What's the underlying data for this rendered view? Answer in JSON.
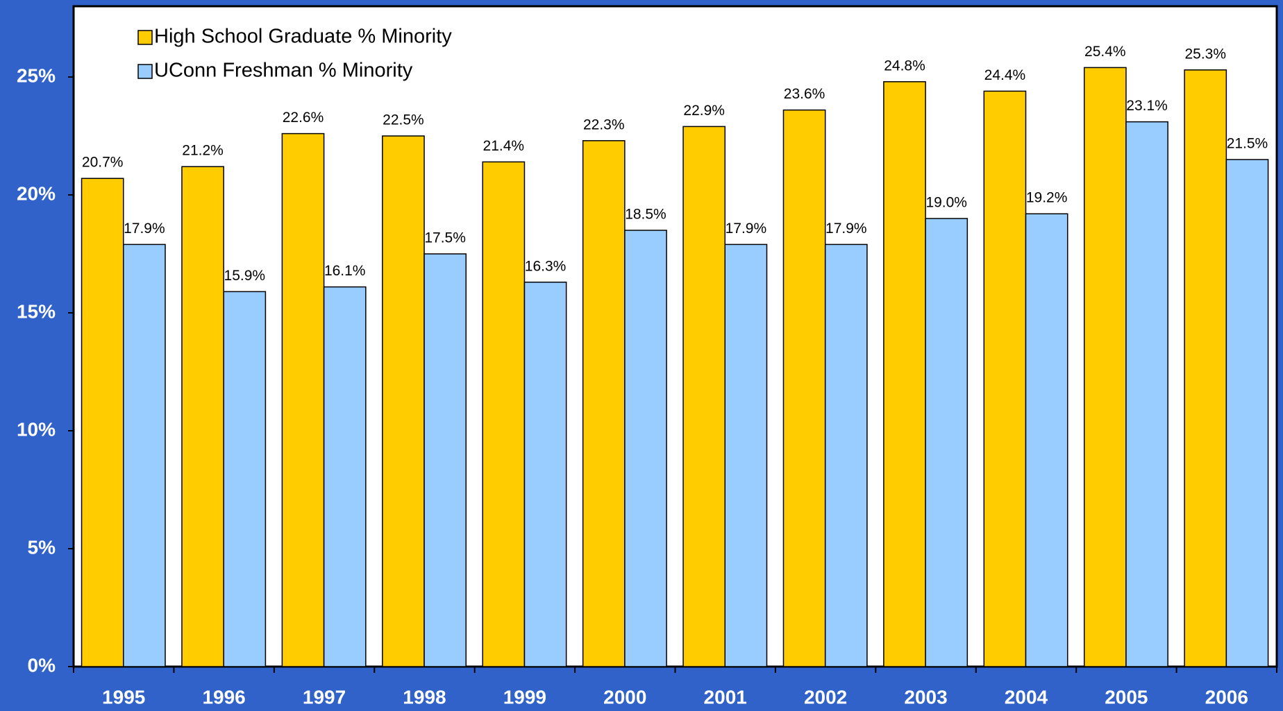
{
  "chart_data": {
    "type": "bar",
    "categories": [
      "1995",
      "1996",
      "1997",
      "1998",
      "1999",
      "2000",
      "2001",
      "2002",
      "2003",
      "2004",
      "2005",
      "2006"
    ],
    "series": [
      {
        "name": "High School Graduate % Minority",
        "color": "#ffcc00",
        "values": [
          20.7,
          21.2,
          22.6,
          22.5,
          21.4,
          22.3,
          22.9,
          23.6,
          24.8,
          24.4,
          25.4,
          25.3
        ],
        "value_labels": [
          "20.7%",
          "21.2%",
          "22.6%",
          "22.5%",
          "21.4%",
          "22.3%",
          "22.9%",
          "23.6%",
          "24.8%",
          "24.4%",
          "25.4%",
          "25.3%"
        ]
      },
      {
        "name": "UConn Freshman % Minority",
        "color": "#99ccff",
        "values": [
          17.9,
          15.9,
          16.1,
          17.5,
          16.3,
          18.5,
          17.9,
          17.9,
          19.0,
          19.2,
          23.1,
          21.5
        ],
        "value_labels": [
          "17.9%",
          "15.9%",
          "16.1%",
          "17.5%",
          "16.3%",
          "18.5%",
          "17.9%",
          "17.9%",
          "19.0%",
          "19.2%",
          "23.1%",
          "21.5%"
        ]
      }
    ],
    "ylim": [
      0,
      28
    ],
    "yticks": [
      {
        "value": 0,
        "label": "0%"
      },
      {
        "value": 5,
        "label": "5%"
      },
      {
        "value": 10,
        "label": "10%"
      },
      {
        "value": 15,
        "label": "15%"
      },
      {
        "value": 20,
        "label": "20%"
      },
      {
        "value": 25,
        "label": "25%"
      }
    ],
    "legend": "top-left"
  }
}
